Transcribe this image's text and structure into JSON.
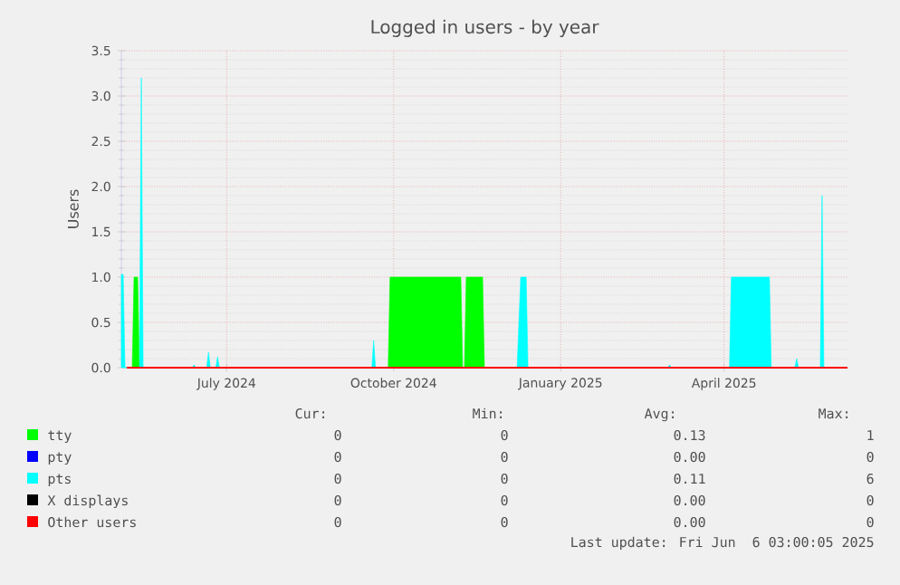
{
  "chart_data": {
    "type": "area",
    "title": "Logged in users - by year",
    "ylabel": "Users",
    "xlim": [
      "2024-05-04",
      "2025-06-08"
    ],
    "xticks": [
      {
        "value": "2024-07-01",
        "label": "July 2024"
      },
      {
        "value": "2024-10-01",
        "label": "October 2024"
      },
      {
        "value": "2025-01-01",
        "label": "January 2025"
      },
      {
        "value": "2025-04-01",
        "label": "April 2025"
      }
    ],
    "ylim": [
      0,
      3.5
    ],
    "yticks": [
      {
        "value": 0,
        "label": "0.0"
      },
      0.5,
      {
        "value": 1,
        "label": "1.0"
      },
      1.5,
      {
        "value": 2,
        "label": "2.0"
      },
      2.5,
      {
        "value": 3,
        "label": "3.0"
      },
      3.5
    ],
    "grid": true,
    "legend": "bottom",
    "series": [
      {
        "name": "tty",
        "color": "#00ff00",
        "x": [
          "2024-05-10",
          "2024-05-11",
          "2024-05-13",
          "2024-05-14",
          "2024-09-28",
          "2024-09-29",
          "2024-11-07",
          "2024-11-08",
          "2024-11-09",
          "2024-11-10",
          "2024-11-19",
          "2024-11-20"
        ],
        "values": [
          0,
          1,
          1,
          0,
          0,
          1,
          1,
          0,
          0,
          1,
          1,
          0
        ]
      },
      {
        "name": "pty",
        "color": "#0000ff"
      },
      {
        "name": "pts",
        "color": "#00ffff",
        "x": [
          "2024-05-04",
          "2024-05-05",
          "2024-05-06",
          "2024-05-14",
          "2024-05-15",
          "2024-05-16",
          "2024-06-12",
          "2024-06-13",
          "2024-06-14",
          "2024-06-20",
          "2024-06-21",
          "2024-06-22",
          "2024-06-25",
          "2024-06-26",
          "2024-06-27",
          "2024-09-19",
          "2024-09-20",
          "2024-09-21",
          "2024-12-08",
          "2024-12-10",
          "2024-12-13",
          "2024-12-14",
          "2025-03-01",
          "2025-03-02",
          "2025-03-03",
          "2025-04-04",
          "2025-04-05",
          "2025-04-26",
          "2025-04-27",
          "2025-05-10",
          "2025-05-11",
          "2025-05-12",
          "2025-05-24",
          "2025-05-25",
          "2025-05-26"
        ],
        "values": [
          1.03,
          1.03,
          0,
          0,
          3.2,
          0,
          0,
          0.03,
          0,
          0,
          0.17,
          0,
          0,
          0.12,
          0,
          0,
          0.3,
          0,
          0,
          1,
          1,
          0,
          0,
          0.03,
          0,
          0,
          1,
          1,
          0,
          0,
          0.1,
          0,
          0,
          1.9,
          0
        ]
      },
      {
        "name": "X displays",
        "color": "#000000"
      },
      {
        "name": "Other users",
        "color": "#ff0000",
        "type": "line",
        "x": [
          "2024-05-07",
          "2025-06-08"
        ],
        "values": [
          0,
          0
        ]
      }
    ],
    "annotations": [
      "Cur:",
      "Min:",
      "Avg:",
      "Max:",
      "0",
      "0",
      "0.13",
      "1",
      "0",
      "0",
      "0.00",
      "0",
      "0",
      "0",
      "0.11",
      "6",
      "0",
      "0",
      "0.00",
      "0",
      "0",
      "0",
      "0.00",
      "0",
      "Last update: Fri Jun  6 03:00:05 2025"
    ]
  }
}
